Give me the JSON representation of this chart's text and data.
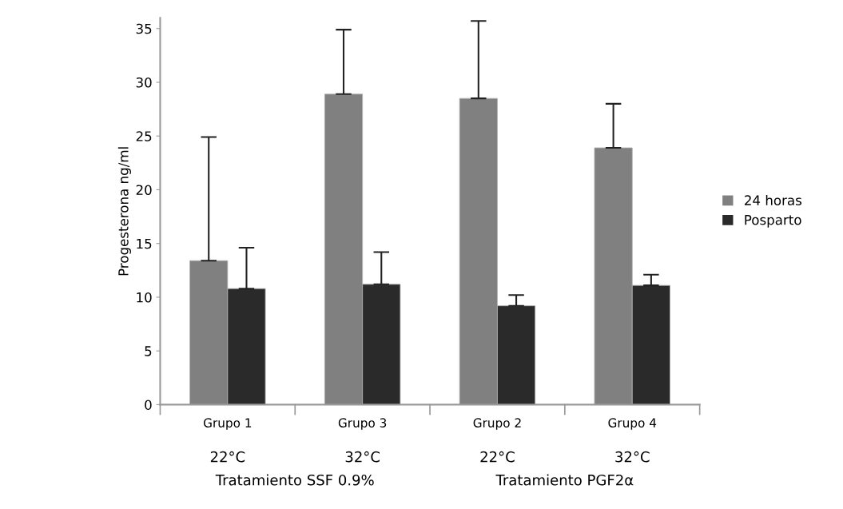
{
  "chart_data": {
    "type": "bar",
    "ylabel": "Progesterona ng/ml",
    "categories": [
      "Grupo 1",
      "Grupo 3",
      "Grupo 2",
      "Grupo 4"
    ],
    "series": [
      {
        "name": "24 horas",
        "color": "#808080",
        "values": [
          13.4,
          28.9,
          28.5,
          23.9
        ],
        "errors": [
          [
            13.4,
            24.9
          ],
          [
            28.9,
            34.9
          ],
          [
            28.5,
            35.7
          ],
          [
            23.9,
            28.0
          ]
        ]
      },
      {
        "name": "Posparto",
        "color": "#2a2a2a",
        "values": [
          10.8,
          11.2,
          9.2,
          11.1
        ],
        "errors": [
          [
            10.8,
            14.6
          ],
          [
            11.2,
            14.2
          ],
          [
            9.2,
            10.2
          ],
          [
            11.1,
            12.1
          ]
        ]
      }
    ],
    "ylim": [
      0,
      36
    ],
    "yticks": [
      0,
      5,
      10,
      15,
      20,
      25,
      30,
      35
    ],
    "grid": false,
    "legend": "right",
    "annotations": [
      "22°C",
      "32°C",
      "22°C",
      "32°C",
      "Tratamiento SSF 0.9%",
      "Tratamiento PGF2α"
    ]
  }
}
